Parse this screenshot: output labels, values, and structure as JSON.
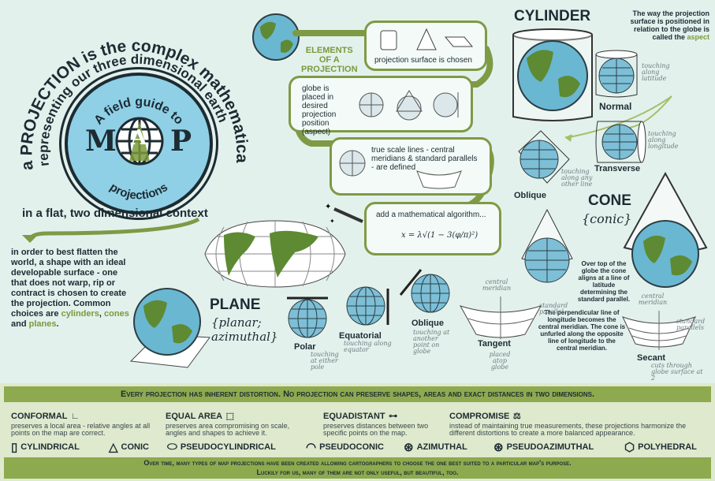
{
  "intro": {
    "arc_text": "a PROJECTION is the complex mathematical method of representing our three dimensional earth",
    "context": "in a flat, two dimensional context",
    "body_plain": "in order to best flatten the world, a shape with an ideal developable surface - one that does not warp, rip or contract is chosen to create the projection. Common choices are ",
    "cylinders": "cylinders",
    "cones": "cones",
    "and": " and ",
    "planes": "planes",
    "period": "."
  },
  "logo": {
    "top": "A field guide to",
    "m": "M",
    "a": "A",
    "p": "P",
    "bottom": "projections"
  },
  "elements": {
    "title_line1": "ELEMENTS",
    "title_line2": "OF A",
    "title_line3": "PROJECTION",
    "step1": "projection surface is chosen",
    "step2": "globe is placed in desired projection position (aspect)",
    "step3": "true scale lines - central meridians & standard parallels - are defined",
    "step4": "add a mathematical algorithm...",
    "formula": "x = λ√(1 − 3(φ/π)²)"
  },
  "cylinder": {
    "title": "CYLINDER",
    "aspect_note_pre": "The way the projection surface is positioned in relation to the globe is called the ",
    "aspect_word": "aspect",
    "normal": "Normal",
    "normal_note": "touching along latitude",
    "transverse": "Transverse",
    "transverse_note": "touching along longitude",
    "oblique": "Oblique",
    "oblique_note": "touching along any other line"
  },
  "cone": {
    "title": "CONE",
    "subtitle": "{conic}",
    "over_note": "Over top of the globe the cone aligns at a line of latitude determining the standard parallel.",
    "perp_note": "The perpendicular line of longitude becomes the central meridian. The cone is unfurled along the opposite line of longitude to the central meridian.",
    "tangent": "Tangent",
    "tangent_note": "placed atop globe",
    "secant": "Secant",
    "secant_note": "cuts through globe surface at 2",
    "central_meridian": "central meridian",
    "standard_parallel": "standard parallel",
    "standard_parallels": "standard parallels"
  },
  "plane": {
    "title": "PLANE",
    "subtitle": "{planar; azimuthal}",
    "polar": "Polar",
    "polar_note": "touching at either pole",
    "equatorial": "Equatorial",
    "equatorial_note": "touching along equator",
    "oblique": "Oblique",
    "oblique_note": "touching at another point on globe"
  },
  "distortion": {
    "banner": "Every projection has inherent distortion. No projection can preserve shapes, areas and exact distances in two dimensions.",
    "categories": [
      {
        "title": "CONFORMAL",
        "icon": "∟",
        "desc": "preserves a local area - relative angles at all points on the map are correct."
      },
      {
        "title": "EQUAL AREA",
        "icon": "⬚",
        "desc": "preserves area compromising on scale, angles and shapes to achieve it."
      },
      {
        "title": "EQUADISTANT",
        "icon": "⊶",
        "desc": "preserves distances between two specific points on the map."
      },
      {
        "title": "COMPROMISE",
        "icon": "⚖",
        "desc": "instead of maintaining true measurements, these projections harmonize the different distortions to create a more balanced appearance."
      }
    ],
    "shapes": [
      {
        "label": "CYLINDRICAL",
        "icon": "▯"
      },
      {
        "label": "CONIC",
        "icon": "△"
      },
      {
        "label": "PSEUDOCYLINDRICAL",
        "icon": "⬭"
      },
      {
        "label": "PSEUDOCONIC",
        "icon": "◠"
      },
      {
        "label": "AZIMUTHAL",
        "icon": "⊛"
      },
      {
        "label": "PSEUDOAZIMUTHAL",
        "icon": "⊛"
      },
      {
        "label": "POLYHEDRAL",
        "icon": "⬡"
      }
    ],
    "footer1": "Over time, many types of map projections have been created allowing cartographers to choose the one best suited to a particular map's purpose.",
    "footer2": "Luckily for us, many of them are not only useful, but beautiful, too."
  },
  "colors": {
    "green": "#8eaa4e",
    "dark": "#1d2b33",
    "ocean": "#6ab7d1",
    "land": "#5d8a32",
    "background": "#e3f1ed"
  }
}
